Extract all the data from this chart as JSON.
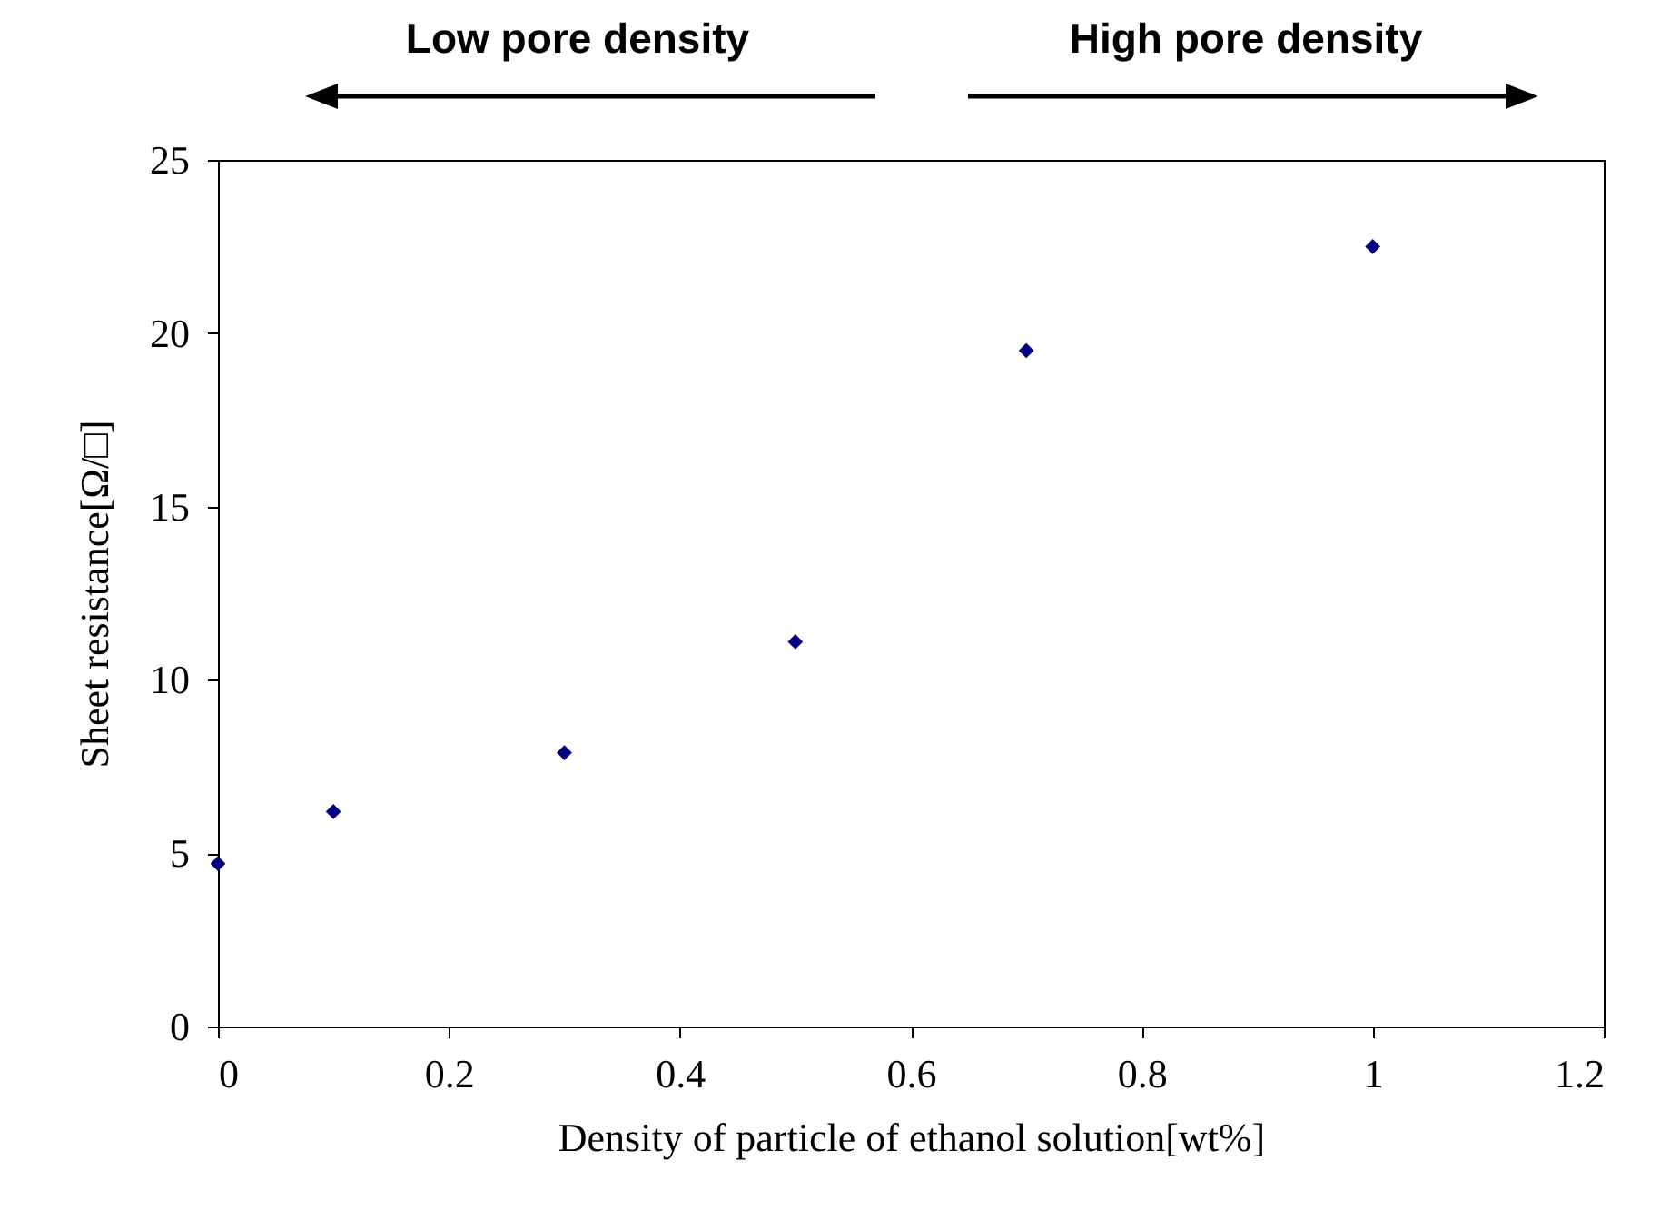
{
  "chart_data": {
    "type": "scatter",
    "xlabel": "Density of particle of ethanol solution[wt%]",
    "ylabel": "Sheet resistance[Ω/□]",
    "annotations": [
      "Low pore density",
      "High pore density"
    ],
    "x": [
      0,
      0.1,
      0.3,
      0.5,
      0.7,
      1.0
    ],
    "series": [
      {
        "color": "#000080",
        "values": [
          4.7,
          6.2,
          7.9,
          11.1,
          19.5,
          22.5
        ]
      }
    ],
    "xlim": [
      0,
      1.2
    ],
    "xticks": [
      0,
      0.2,
      0.4,
      0.6,
      0.8,
      1,
      1.2
    ],
    "ylim": [
      0,
      25
    ],
    "yticks": [
      0,
      5,
      10,
      15,
      20,
      25
    ],
    "grid": false,
    "marker": "diamond"
  }
}
